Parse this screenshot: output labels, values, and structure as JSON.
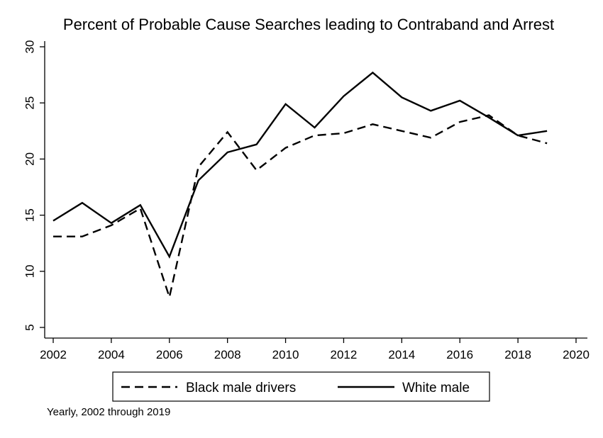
{
  "chart_data": {
    "type": "line",
    "title": "Percent of Probable Cause Searches leading to Contraband and Arrest",
    "note": "Yearly, 2002 through 2019",
    "xlabel": "",
    "ylabel": "",
    "xlim": [
      2002,
      2020
    ],
    "ylim": [
      5,
      30
    ],
    "x_ticks": [
      2002,
      2004,
      2006,
      2008,
      2010,
      2012,
      2014,
      2016,
      2018,
      2020
    ],
    "y_ticks": [
      5,
      10,
      15,
      20,
      25,
      30
    ],
    "grid": false,
    "legend_position": "bottom",
    "x": [
      2002,
      2003,
      2004,
      2005,
      2006,
      2007,
      2008,
      2009,
      2010,
      2011,
      2012,
      2013,
      2014,
      2015,
      2016,
      2017,
      2018,
      2019
    ],
    "series": [
      {
        "name": "Black male drivers",
        "style": "dashed",
        "color": "#000000",
        "values": [
          13.1,
          13.1,
          14.1,
          15.6,
          7.7,
          19.3,
          22.4,
          19.0,
          21.0,
          22.1,
          22.3,
          23.1,
          22.5,
          21.9,
          23.3,
          23.9,
          22.1,
          21.4
        ]
      },
      {
        "name": "White male",
        "style": "solid",
        "color": "#000000",
        "values": [
          14.5,
          16.1,
          14.3,
          15.9,
          11.3,
          18.1,
          20.6,
          21.3,
          24.9,
          22.8,
          25.6,
          27.7,
          25.5,
          24.3,
          25.2,
          23.7,
          22.1,
          22.5
        ]
      }
    ]
  }
}
